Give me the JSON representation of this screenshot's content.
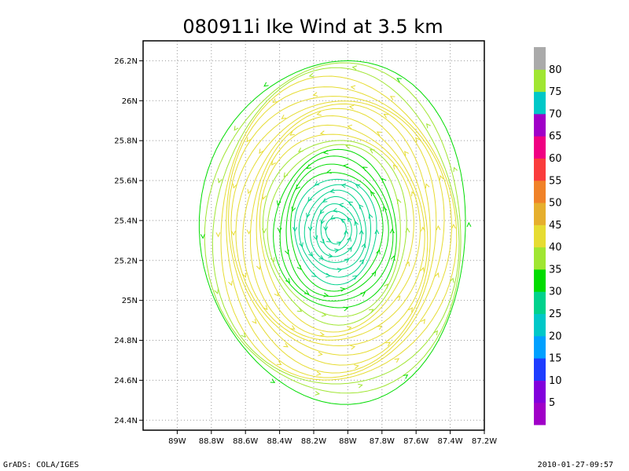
{
  "chart_data": {
    "type": "streamline",
    "title": "080911i Ike Wind at 3.5 km",
    "xlim": [
      -89.2,
      -87.2
    ],
    "ylim": [
      24.35,
      26.3
    ],
    "x_ticks": [
      {
        "value": -89.0,
        "label": "89W"
      },
      {
        "value": -88.8,
        "label": "88.8W"
      },
      {
        "value": -88.6,
        "label": "88.6W"
      },
      {
        "value": -88.4,
        "label": "88.4W"
      },
      {
        "value": -88.2,
        "label": "88.2W"
      },
      {
        "value": -88.0,
        "label": "88W"
      },
      {
        "value": -87.8,
        "label": "87.8W"
      },
      {
        "value": -87.6,
        "label": "87.6W"
      },
      {
        "value": -87.4,
        "label": "87.4W"
      },
      {
        "value": -87.2,
        "label": "87.2W"
      }
    ],
    "y_ticks": [
      {
        "value": 24.4,
        "label": "24.4N"
      },
      {
        "value": 24.6,
        "label": "24.6N"
      },
      {
        "value": 24.8,
        "label": "24.8N"
      },
      {
        "value": 25.0,
        "label": "25N"
      },
      {
        "value": 25.2,
        "label": "25.2N"
      },
      {
        "value": 25.4,
        "label": "25.4N"
      },
      {
        "value": 25.6,
        "label": "25.6N"
      },
      {
        "value": 25.8,
        "label": "25.8N"
      },
      {
        "value": 26.0,
        "label": "26N"
      },
      {
        "value": 26.2,
        "label": "26.2N"
      }
    ],
    "grid": true,
    "rotation": "counterclockwise",
    "vortex_center": {
      "lon": -88.07,
      "lat": 25.35
    },
    "colorbar": {
      "labels": [
        "5",
        "10",
        "15",
        "20",
        "25",
        "30",
        "35",
        "40",
        "45",
        "50",
        "55",
        "60",
        "65",
        "70",
        "75",
        "80"
      ],
      "colors": [
        "#a000c8",
        "#8200dc",
        "#1e3cff",
        "#00a0ff",
        "#00c8c8",
        "#00d28c",
        "#00dc00",
        "#a0e632",
        "#e6dc32",
        "#e6af2d",
        "#f08228",
        "#fa3c3c",
        "#f00082",
        "#a000c8",
        "#00c8c8",
        "#a0e632",
        "#aaaaaa"
      ]
    },
    "rings": [
      {
        "radius_deg": 0.06,
        "speed": 25
      },
      {
        "radius_deg": 0.09,
        "speed": 25
      },
      {
        "radius_deg": 0.12,
        "speed": 25
      },
      {
        "radius_deg": 0.15,
        "speed": 25
      },
      {
        "radius_deg": 0.18,
        "speed": 25
      },
      {
        "radius_deg": 0.21,
        "speed": 25
      },
      {
        "radius_deg": 0.24,
        "speed": 28
      },
      {
        "radius_deg": 0.27,
        "speed": 30
      },
      {
        "radius_deg": 0.3,
        "speed": 31
      },
      {
        "radius_deg": 0.33,
        "speed": 32
      },
      {
        "radius_deg": 0.36,
        "speed": 34
      },
      {
        "radius_deg": 0.39,
        "speed": 36
      },
      {
        "radius_deg": 0.42,
        "speed": 38
      },
      {
        "radius_deg": 0.45,
        "speed": 40
      },
      {
        "radius_deg": 0.48,
        "speed": 40
      },
      {
        "radius_deg": 0.51,
        "speed": 42
      },
      {
        "radius_deg": 0.54,
        "speed": 42
      },
      {
        "radius_deg": 0.57,
        "speed": 44
      },
      {
        "radius_deg": 0.6,
        "speed": 44
      },
      {
        "radius_deg": 0.63,
        "speed": 42
      },
      {
        "radius_deg": 0.66,
        "speed": 40
      },
      {
        "radius_deg": 0.69,
        "speed": 40
      },
      {
        "radius_deg": 0.72,
        "speed": 38
      },
      {
        "radius_deg": 0.75,
        "speed": 36
      },
      {
        "radius_deg": 0.78,
        "speed": 34
      }
    ]
  },
  "footer": {
    "left": "GrADS: COLA/IGES",
    "right": "2010-01-27-09:57"
  }
}
